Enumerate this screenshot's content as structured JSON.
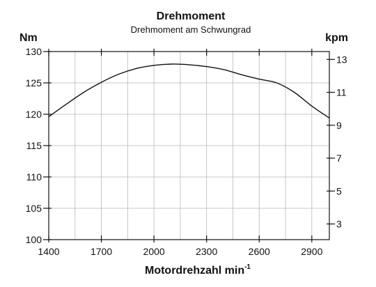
{
  "chart_data": {
    "type": "line",
    "title": "Drehmoment",
    "subtitle": "Drehmoment am Schwungrad",
    "xlabel_main": "Motordrehzahl min",
    "xlabel_sup": "-1",
    "ylabel_left": "Nm",
    "ylabel_right": "kpm",
    "xlim": [
      1400,
      3000
    ],
    "ylim": [
      100,
      130
    ],
    "x_ticks": [
      1400,
      1700,
      2000,
      2300,
      2600,
      2900
    ],
    "y_ticks": [
      100,
      105,
      110,
      115,
      120,
      125,
      130
    ],
    "right_ticks": [
      3,
      5,
      7,
      9,
      11,
      13
    ],
    "right_tick_positions_nm": [
      102.5,
      107.75,
      113.0,
      118.25,
      123.5,
      128.75
    ],
    "grid": true,
    "series": [
      {
        "x": [
          1400,
          1500,
          1600,
          1700,
          1800,
          1900,
          2000,
          2100,
          2200,
          2300,
          2400,
          2500,
          2600,
          2700,
          2800,
          2900,
          3000
        ],
        "y": [
          119.6,
          121.6,
          123.5,
          125.1,
          126.4,
          127.3,
          127.8,
          128.0,
          127.9,
          127.6,
          127.1,
          126.3,
          125.6,
          125.0,
          123.5,
          121.3,
          119.4
        ]
      }
    ]
  }
}
